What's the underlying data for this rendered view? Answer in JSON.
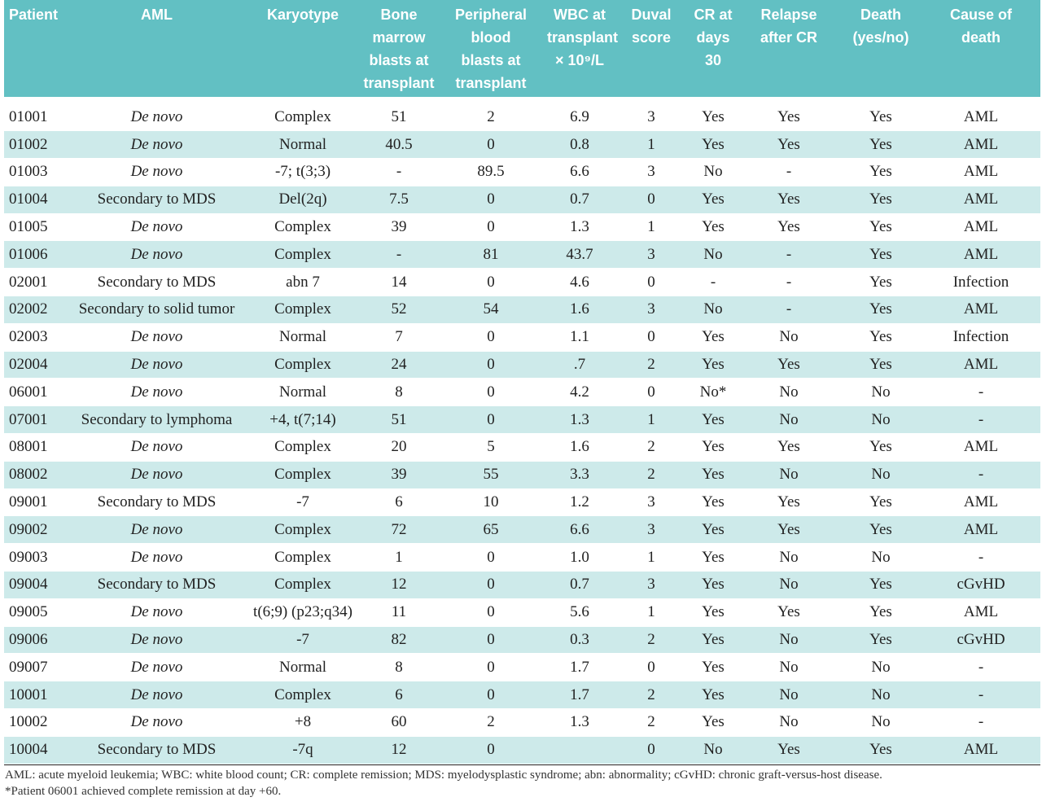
{
  "table": {
    "headers": [
      "Patient",
      "AML",
      "Karyotype",
      "Bone\nmarrow\nblasts at\ntransplant",
      "Peripheral\nblood\nblasts at\ntransplant",
      "WBC at\ntransplant\n× 10⁹/L",
      "Duval\nscore",
      "CR at\ndays 30",
      "Relapse\nafter CR",
      "Death\n(yes/no)",
      "Cause of\ndeath"
    ],
    "rows": [
      [
        "01001",
        "De novo",
        "Complex",
        "51",
        "2",
        "6.9",
        "3",
        "Yes",
        "Yes",
        "Yes",
        "AML"
      ],
      [
        "01002",
        "De novo",
        "Normal",
        "40.5",
        "0",
        "0.8",
        "1",
        "Yes",
        "Yes",
        "Yes",
        "AML"
      ],
      [
        "01003",
        "De novo",
        "-7; t(3;3)",
        "-",
        "89.5",
        "6.6",
        "3",
        "No",
        "-",
        "Yes",
        "AML"
      ],
      [
        "01004",
        "Secondary to MDS",
        "Del(2q)",
        "7.5",
        "0",
        "0.7",
        "0",
        "Yes",
        "Yes",
        "Yes",
        "AML"
      ],
      [
        "01005",
        "De novo",
        "Complex",
        "39",
        "0",
        "1.3",
        "1",
        "Yes",
        "Yes",
        "Yes",
        "AML"
      ],
      [
        "01006",
        "De novo",
        "Complex",
        "-",
        "81",
        "43.7",
        "3",
        "No",
        "-",
        "Yes",
        "AML"
      ],
      [
        "02001",
        "Secondary to MDS",
        "abn 7",
        "14",
        "0",
        "4.6",
        "0",
        "-",
        "-",
        "Yes",
        "Infection"
      ],
      [
        "02002",
        "Secondary to solid tumor",
        "Complex",
        "52",
        "54",
        "1.6",
        "3",
        "No",
        "-",
        "Yes",
        "AML"
      ],
      [
        "02003",
        "De novo",
        "Normal",
        "7",
        "0",
        "1.1",
        "0",
        "Yes",
        "No",
        "Yes",
        "Infection"
      ],
      [
        "02004",
        "De novo",
        "Complex",
        "24",
        "0",
        ".7",
        "2",
        "Yes",
        "Yes",
        "Yes",
        "AML"
      ],
      [
        "06001",
        "De novo",
        "Normal",
        "8",
        "0",
        "4.2",
        "0",
        "No*",
        "No",
        "No",
        "-"
      ],
      [
        "07001",
        "Secondary to lymphoma",
        "+4, t(7;14)",
        "51",
        "0",
        "1.3",
        "1",
        "Yes",
        "No",
        "No",
        "-"
      ],
      [
        "08001",
        "De novo",
        "Complex",
        "20",
        "5",
        "1.6",
        "2",
        "Yes",
        "Yes",
        "Yes",
        "AML"
      ],
      [
        "08002",
        "De novo",
        "Complex",
        "39",
        "55",
        "3.3",
        "2",
        "Yes",
        "No",
        "No",
        "-"
      ],
      [
        "09001",
        "Secondary to MDS",
        "-7",
        "6",
        "10",
        "1.2",
        "3",
        "Yes",
        "Yes",
        "Yes",
        "AML"
      ],
      [
        "09002",
        "De novo",
        "Complex",
        "72",
        "65",
        "6.6",
        "3",
        "Yes",
        "Yes",
        "Yes",
        "AML"
      ],
      [
        "09003",
        "De novo",
        "Complex",
        "1",
        "0",
        "1.0",
        "1",
        "Yes",
        "No",
        "No",
        "-"
      ],
      [
        "09004",
        "Secondary to MDS",
        "Complex",
        "12",
        "0",
        "0.7",
        "3",
        "Yes",
        "No",
        "Yes",
        "cGvHD"
      ],
      [
        "09005",
        "De novo",
        "t(6;9) (p23;q34)",
        "11",
        "0",
        "5.6",
        "1",
        "Yes",
        "Yes",
        "Yes",
        "AML"
      ],
      [
        "09006",
        "De novo",
        "-7",
        "82",
        "0",
        "0.3",
        "2",
        "Yes",
        "No",
        "Yes",
        "cGvHD"
      ],
      [
        "09007",
        "De novo",
        "Normal",
        "8",
        "0",
        "1.7",
        "0",
        "Yes",
        "No",
        "No",
        "-"
      ],
      [
        "10001",
        "De novo",
        "Complex",
        "6",
        "0",
        "1.7",
        "2",
        "Yes",
        "No",
        "No",
        "-"
      ],
      [
        "10002",
        "De novo",
        "+8",
        "60",
        "2",
        "1.3",
        "2",
        "Yes",
        "No",
        "No",
        "-"
      ],
      [
        "10004",
        "Secondary to MDS",
        "-7q",
        "12",
        "0",
        "",
        "0",
        "No",
        "Yes",
        "Yes",
        "AML"
      ]
    ]
  },
  "footnotes": {
    "line1": "AML: acute myeloid leukemia; WBC: white blood count; CR: complete remission; MDS: myelodysplastic syndrome; abn: abnormality; cGvHD: chronic graft-versus-host disease.",
    "line2": "*Patient 06001 achieved complete remission at day +60."
  }
}
